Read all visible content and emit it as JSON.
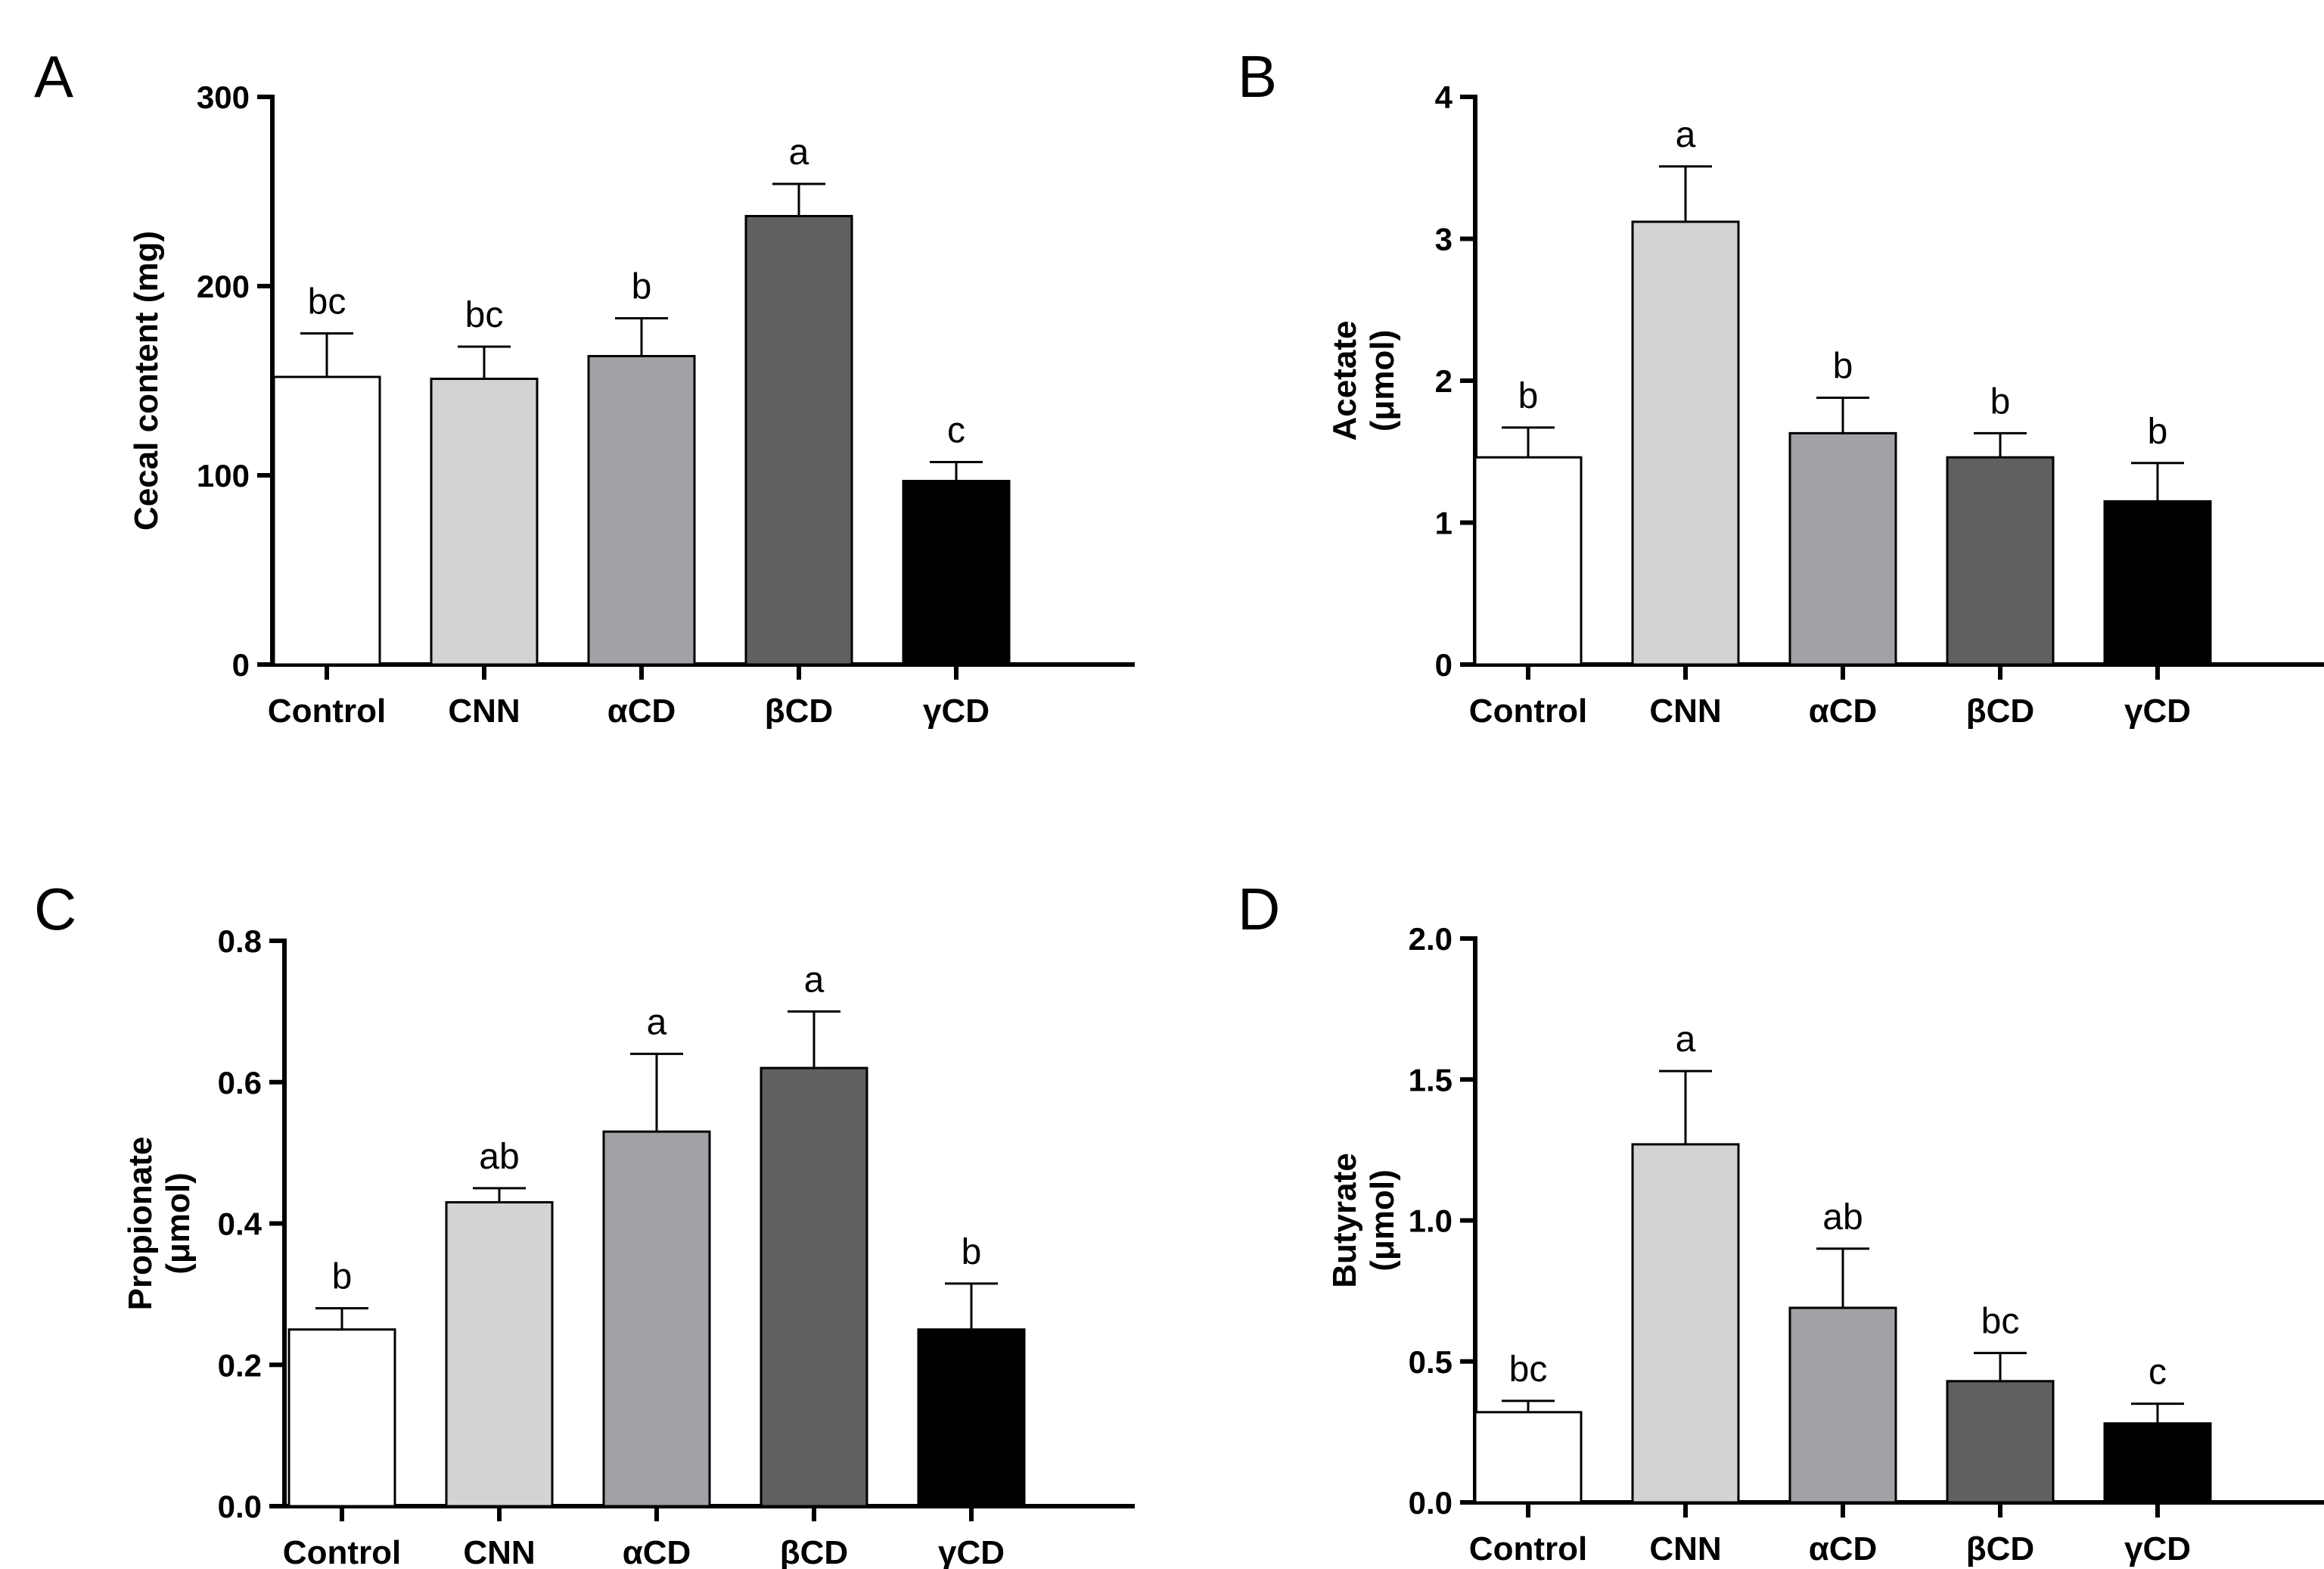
{
  "figure": {
    "colors": {
      "Control": "#ffffff",
      "CNN": "#d3d3d3",
      "αCD": "#a2a2a6",
      "βCD": "#606060",
      "γCD": "#000000",
      "axis": "#000000"
    }
  },
  "chart_data": [
    {
      "panel": "A",
      "type": "bar",
      "categories": [
        "Control",
        "CNN",
        "αCD",
        "βCD",
        "γCD"
      ],
      "values": [
        152,
        151,
        163,
        237,
        97
      ],
      "errors": [
        23,
        17,
        20,
        17,
        10
      ],
      "significance": [
        "bc",
        "bc",
        "b",
        "a",
        "c"
      ],
      "ylabel": [
        "Cecal content (mg)"
      ],
      "ylim": [
        0,
        300
      ],
      "yticks": [
        0,
        100,
        200,
        300
      ],
      "ytick_labels": [
        "0",
        "100",
        "200",
        "300"
      ]
    },
    {
      "panel": "B",
      "type": "bar",
      "categories": [
        "Control",
        "CNN",
        "αCD",
        "βCD",
        "γCD"
      ],
      "values": [
        1.46,
        3.12,
        1.63,
        1.46,
        1.15
      ],
      "errors": [
        0.21,
        0.39,
        0.25,
        0.17,
        0.27
      ],
      "significance": [
        "b",
        "a",
        "b",
        "b",
        "b"
      ],
      "ylabel": [
        "Acetate",
        "(μmol)"
      ],
      "ylim": [
        0,
        4
      ],
      "yticks": [
        0,
        1,
        2,
        3,
        4
      ],
      "ytick_labels": [
        "0",
        "1",
        "2",
        "3",
        "4"
      ]
    },
    {
      "panel": "C",
      "type": "bar",
      "categories": [
        "Control",
        "CNN",
        "αCD",
        "βCD",
        "γCD"
      ],
      "values": [
        0.25,
        0.43,
        0.53,
        0.62,
        0.25
      ],
      "errors": [
        0.03,
        0.02,
        0.11,
        0.08,
        0.065
      ],
      "significance": [
        "b",
        "ab",
        "a",
        "a",
        "b"
      ],
      "ylabel": [
        "Propionate",
        "(μmol)"
      ],
      "ylim": [
        0,
        0.8
      ],
      "yticks": [
        0,
        0.2,
        0.4,
        0.6,
        0.8
      ],
      "ytick_labels": [
        "0.0",
        "0.2",
        "0.4",
        "0.6",
        "0.8"
      ]
    },
    {
      "panel": "D",
      "type": "bar",
      "categories": [
        "Control",
        "CNN",
        "αCD",
        "βCD",
        "γCD"
      ],
      "values": [
        0.32,
        1.27,
        0.69,
        0.43,
        0.28
      ],
      "errors": [
        0.04,
        0.26,
        0.21,
        0.1,
        0.07
      ],
      "significance": [
        "bc",
        "a",
        "ab",
        "bc",
        "c"
      ],
      "ylabel": [
        "Butyrate",
        "(μmol)"
      ],
      "ylim": [
        0,
        2.0
      ],
      "yticks": [
        0,
        0.5,
        1.0,
        1.5,
        2.0
      ],
      "ytick_labels": [
        "0.0",
        "0.5",
        "1.0",
        "1.5",
        "2.0"
      ]
    }
  ]
}
